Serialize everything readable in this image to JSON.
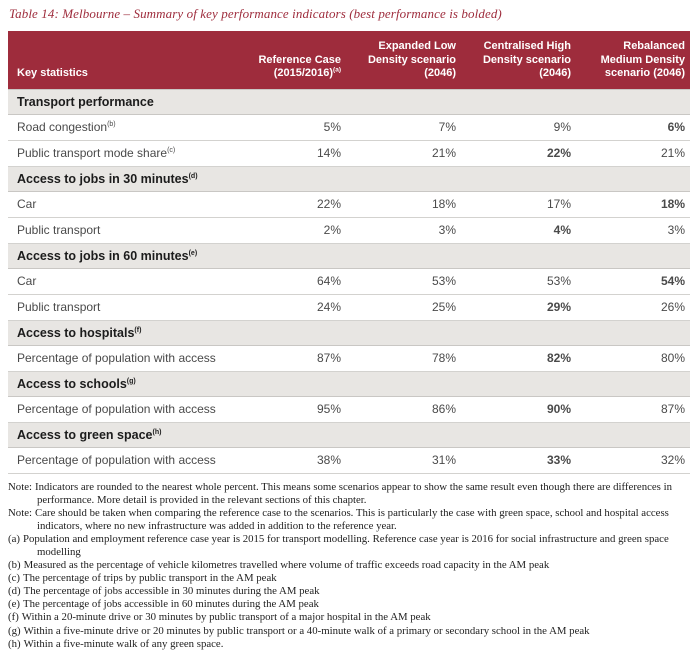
{
  "title": "Table 14: Melbourne – Summary of key performance indicators (best performance is bolded)",
  "colors": {
    "header_bg": "#9e2c3c",
    "header_text": "#ffffff",
    "section_bg": "#e8e6e3",
    "title_color": "#9e2c3c",
    "row_border": "#d3d2cf"
  },
  "table": {
    "header": {
      "key_col": "Key statistics",
      "cols": [
        {
          "text": "Reference Case (2015/2016)",
          "sup": "(a)"
        },
        {
          "text": "Expanded Low Density scenario (2046)",
          "sup": ""
        },
        {
          "text": "Centralised High Density scenario (2046)",
          "sup": ""
        },
        {
          "text": "Rebalanced Medium Density scenario (2046)",
          "sup": ""
        }
      ]
    },
    "sections": [
      {
        "title": "Transport performance",
        "sup": "",
        "rows": [
          {
            "label": "Road congestion",
            "sup": "(b)",
            "values": [
              "5%",
              "7%",
              "9%",
              "6%"
            ],
            "bold_index": 3
          },
          {
            "label": "Public transport mode share",
            "sup": "(c)",
            "values": [
              "14%",
              "21%",
              "22%",
              "21%"
            ],
            "bold_index": 2
          }
        ]
      },
      {
        "title": "Access to jobs in 30 minutes",
        "sup": "(d)",
        "rows": [
          {
            "label": "Car",
            "sup": "",
            "values": [
              "22%",
              "18%",
              "17%",
              "18%"
            ],
            "bold_index": 3
          },
          {
            "label": "Public transport",
            "sup": "",
            "values": [
              "2%",
              "3%",
              "4%",
              "3%"
            ],
            "bold_index": 2
          }
        ]
      },
      {
        "title": "Access to jobs in 60 minutes",
        "sup": "(e)",
        "rows": [
          {
            "label": "Car",
            "sup": "",
            "values": [
              "64%",
              "53%",
              "53%",
              "54%"
            ],
            "bold_index": 3
          },
          {
            "label": "Public transport",
            "sup": "",
            "values": [
              "24%",
              "25%",
              "29%",
              "26%"
            ],
            "bold_index": 2
          }
        ]
      },
      {
        "title": "Access to hospitals",
        "sup": "(f)",
        "rows": [
          {
            "label": "Percentage of population with access",
            "sup": "",
            "values": [
              "87%",
              "78%",
              "82%",
              "80%"
            ],
            "bold_index": 2
          }
        ]
      },
      {
        "title": "Access to schools",
        "sup": "(g)",
        "rows": [
          {
            "label": "Percentage of population with access",
            "sup": "",
            "values": [
              "95%",
              "86%",
              "90%",
              "87%"
            ],
            "bold_index": 2
          }
        ]
      },
      {
        "title": "Access to green space",
        "sup": "(h)",
        "rows": [
          {
            "label": "Percentage of population with access",
            "sup": "",
            "values": [
              "38%",
              "31%",
              "33%",
              "32%"
            ],
            "bold_index": 2
          }
        ]
      }
    ]
  },
  "notes": [
    {
      "label": "Note:",
      "text": "Indicators are rounded to the nearest whole percent. This means some scenarios appear to show the same result even though there are differences in performance. More detail is provided in the relevant sections of this chapter."
    },
    {
      "label": "Note:",
      "text": "Care should be taken when comparing the reference case to the scenarios. This is particularly the case with green space, school and hospital access indicators, where no new infrastructure was added in addition to the reference year."
    },
    {
      "label": "(a)",
      "text": "Population and employment reference case year is 2015 for transport modelling. Reference case year is 2016 for social infrastructure and green space modelling"
    },
    {
      "label": "(b)",
      "text": "Measured as the percentage of vehicle kilometres travelled where volume of traffic exceeds road capacity in the AM peak"
    },
    {
      "label": "(c)",
      "text": "The percentage of trips by public transport in the AM peak"
    },
    {
      "label": "(d)",
      "text": "The percentage of jobs accessible in 30 minutes during the AM peak"
    },
    {
      "label": "(e)",
      "text": "The percentage of jobs accessible in 60 minutes during the AM peak"
    },
    {
      "label": "(f)",
      "text": "Within a 20-minute drive or 30 minutes by public transport of a major hospital in the AM peak"
    },
    {
      "label": "(g)",
      "text": "Within a five-minute drive or 20 minutes by public transport or a 40-minute walk of a primary or secondary school in the AM peak"
    },
    {
      "label": "(h)",
      "text": "Within a five-minute walk of any green space."
    }
  ]
}
